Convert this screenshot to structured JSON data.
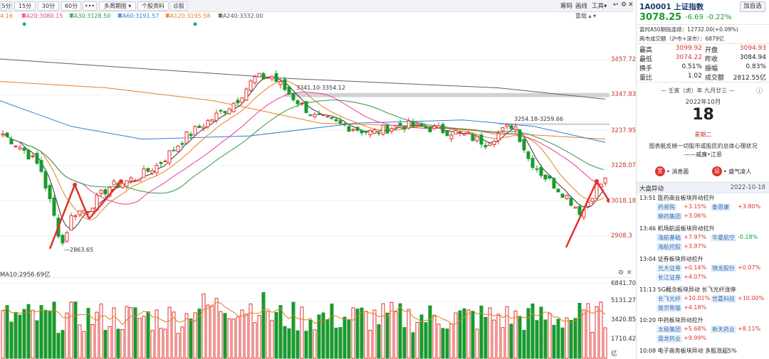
{
  "toolbar": {
    "periods": [
      "5分",
      "15分",
      "30分",
      "60分"
    ],
    "more": "•••",
    "multi_period": "多周期图",
    "stock_info": "个股资料",
    "diagnose": "诊股",
    "right": [
      "筹码",
      "画线",
      "工具"
    ]
  },
  "legend": [
    {
      "text": "4.16",
      "color": "#e67e22"
    },
    {
      "text": "MA20:3080.15",
      "color": "#e63d9b",
      "arrow": "down"
    },
    {
      "text": "MA30:3128.50",
      "color": "#2e9a3e",
      "arrow": "down"
    },
    {
      "text": "MA60:3191.57",
      "color": "#2f7fd6",
      "arrow": "down"
    },
    {
      "text": "MA120:3195.58",
      "color": "#e67e22",
      "arrow": "down"
    },
    {
      "text": "MA240:3332.00",
      "color": "#555555",
      "arrow": "down"
    }
  ],
  "chart_data": {
    "type": "candlestick",
    "price_axis": [
      3457.72,
      3347.83,
      3237.95,
      3128.07,
      3018.18,
      2908.3
    ],
    "annotations": [
      "2863.65",
      "3341.10-3354.12",
      "3254.18-3259.66"
    ],
    "volume_legend": "MA10:2956.69亿",
    "volume_axis": [
      "6841.70",
      "5131.27",
      "3420.85",
      "1710.42",
      "亿"
    ]
  },
  "panel": {
    "code_name": "1A0001 上证指数",
    "add_button": "加自选",
    "price": "3078.25",
    "change": "-6.69",
    "change_pct": "-0.22%",
    "futures": "富时A50期指连续：12732.00(+0.09%)",
    "turnover": "两市成交额（沪市+深市）：6879亿",
    "stats": [
      {
        "label": "最高",
        "value": "3099.92",
        "label2": "开盘",
        "value2": "3094.93"
      },
      {
        "label": "最低",
        "value": "3074.22",
        "label2": "昨收",
        "value2": "3084.94"
      },
      {
        "label": "换手",
        "value": "0.51%",
        "label2": "振幅",
        "value2": "0.83%"
      },
      {
        "label": "量比",
        "value": "1.02",
        "label2": "成交额",
        "value2": "2812.55亿"
      }
    ],
    "lunar": "壬寅（虎）年 九月廿三",
    "month": "2022年10月",
    "day": "18",
    "weekday": "星期二",
    "quote": "图表能反映一切股市或股民的总体心理状况",
    "quote_author": "——威廉•江恩",
    "good": "宜",
    "good_text": "• 消息面",
    "bad": "忌",
    "bad_text": "• 盛气凌人",
    "news_title": "大盘异动",
    "news_date": "2022-10-18",
    "events": [
      {
        "time": "13:51",
        "title": "医药商业板块异动拉升",
        "stocks": [
          {
            "name": "药易购",
            "chg": "+3.15%",
            "c": "red"
          },
          {
            "name": "泰恩康",
            "chg": "+3.80%",
            "c": "red"
          },
          {
            "name": "柳药集团",
            "chg": "+3.06%",
            "c": "red"
          }
        ]
      },
      {
        "time": "13:46",
        "title": "机场航运板块异动拉升",
        "stocks": [
          {
            "name": "海航基础",
            "chg": "+7.97%",
            "c": "red"
          },
          {
            "name": "华夏航空",
            "chg": "-0.18%",
            "c": "green"
          },
          {
            "name": "海航控股",
            "chg": "+3.97%",
            "c": "red"
          }
        ]
      },
      {
        "time": "13:04",
        "title": "证券板块异动拉升",
        "stocks": [
          {
            "name": "光大证券",
            "chg": "+0.14%",
            "c": "red"
          },
          {
            "name": "锦龙股份",
            "chg": "+0.07%",
            "c": "red"
          },
          {
            "name": "长江证券",
            "chg": "+4.07%",
            "c": "red"
          }
        ]
      },
      {
        "time": "11:13",
        "title": "5G概念板块异动 长飞光纤涨停",
        "stocks": [
          {
            "name": "长飞光纤",
            "chg": "+10.01%",
            "c": "red"
          },
          {
            "name": "世嘉科技",
            "chg": "+10.00%",
            "c": "red"
          },
          {
            "name": "南京熊猫",
            "chg": "+4.18%",
            "c": "red"
          }
        ]
      },
      {
        "time": "10:20",
        "title": "中药板块异动拉升",
        "stocks": [
          {
            "name": "太极集团",
            "chg": "+5.68%",
            "c": "red"
          },
          {
            "name": "新天药业",
            "chg": "+8.11%",
            "c": "red"
          },
          {
            "name": "盘龙药业",
            "chg": "+9.99%",
            "c": "red"
          }
        ]
      },
      {
        "time": "10:08",
        "title": "电子商务板块异动 多股涨超5%",
        "stocks": []
      }
    ]
  }
}
